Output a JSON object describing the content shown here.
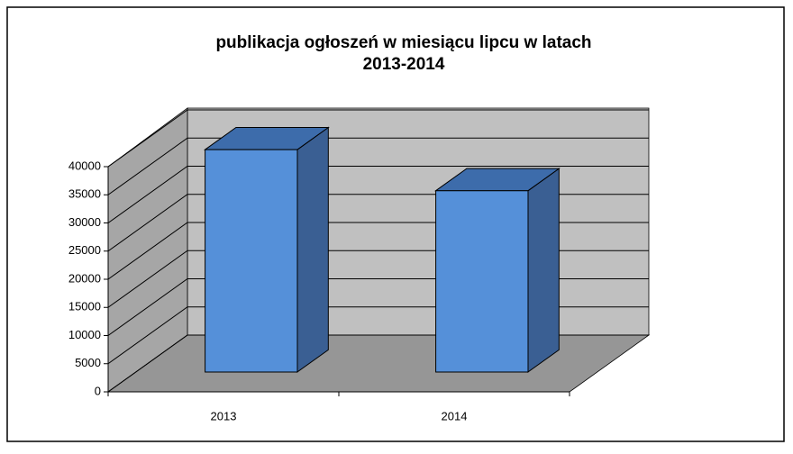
{
  "chart_data": {
    "type": "bar3d",
    "title": [
      "publikacja ogłoszeń w miesiącu lipcu w latach",
      "2013-2014"
    ],
    "categories": [
      "2013",
      "2014"
    ],
    "values": [
      39500,
      32200
    ],
    "color": "#5590d9",
    "ylim": [
      0,
      40000
    ],
    "yticks": [
      0,
      5000,
      10000,
      15000,
      20000,
      25000,
      30000,
      35000,
      40000
    ],
    "grid": true
  }
}
